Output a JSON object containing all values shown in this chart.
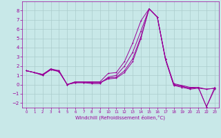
{
  "x": [
    0,
    1,
    2,
    3,
    4,
    5,
    6,
    7,
    8,
    9,
    10,
    11,
    12,
    13,
    14,
    15,
    16,
    17,
    18,
    19,
    20,
    21,
    22,
    23
  ],
  "line1": [
    1.5,
    1.3,
    1.1,
    1.7,
    1.5,
    0.0,
    0.3,
    0.3,
    0.3,
    0.3,
    1.2,
    1.3,
    2.5,
    4.5,
    6.9,
    8.2,
    7.3,
    2.8,
    0.1,
    -0.1,
    -0.3,
    -0.3,
    -0.5,
    -0.4
  ],
  "line2": [
    1.5,
    1.3,
    1.0,
    1.7,
    1.4,
    0.0,
    0.2,
    0.2,
    0.1,
    0.1,
    0.8,
    1.0,
    2.0,
    3.5,
    5.8,
    8.2,
    7.3,
    2.7,
    0.0,
    -0.2,
    -0.4,
    -0.3,
    -2.4,
    -0.3
  ],
  "line3": [
    1.5,
    1.3,
    1.1,
    1.6,
    1.5,
    0.0,
    0.2,
    0.2,
    0.2,
    0.2,
    0.7,
    0.8,
    1.5,
    2.8,
    5.2,
    8.2,
    7.3,
    2.7,
    0.0,
    -0.2,
    -0.4,
    -0.3,
    -2.4,
    -0.5
  ],
  "line4": [
    1.5,
    1.3,
    1.0,
    1.6,
    1.4,
    0.0,
    0.3,
    0.3,
    0.2,
    0.2,
    0.6,
    0.7,
    1.3,
    2.5,
    5.0,
    8.2,
    7.3,
    2.7,
    -0.1,
    -0.3,
    -0.5,
    -0.4,
    -0.5,
    -0.4
  ],
  "bg_color": "#c8e8e8",
  "line_color": "#990099",
  "grid_color": "#aacccc",
  "xlabel": "Windchill (Refroidissement éolien,°C)",
  "xlim": [
    -0.5,
    23.5
  ],
  "ylim": [
    -2.5,
    9.0
  ],
  "yticks": [
    -2,
    -1,
    0,
    1,
    2,
    3,
    4,
    5,
    6,
    7,
    8
  ],
  "xticks": [
    0,
    1,
    2,
    3,
    4,
    5,
    6,
    7,
    8,
    9,
    10,
    11,
    12,
    13,
    14,
    15,
    16,
    17,
    18,
    19,
    20,
    21,
    22,
    23
  ],
  "xlabel_fontsize": 5.0,
  "xtick_fontsize": 4.0,
  "ytick_fontsize": 5.0,
  "lw": 0.7,
  "ms": 2.0,
  "mew": 0.7
}
